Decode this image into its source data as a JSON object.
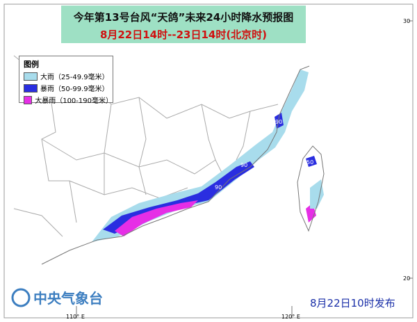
{
  "header": {
    "title": "今年第13号台风“天鸽”未来24小时降水预报图",
    "subtitle": "8月22日14时--23日14时(北京时)"
  },
  "legend": {
    "title": "图例",
    "items": [
      {
        "label": "大雨（25-49.9毫米）",
        "color": "#a8dcec"
      },
      {
        "label": "暴雨（50-99.9毫米）",
        "color": "#2a2ee0"
      },
      {
        "label": "大暴雨（100-190毫米）",
        "color": "#e62ee6"
      }
    ]
  },
  "axes": {
    "x_labels": [
      "110° E",
      "120° E"
    ],
    "y_labels": [
      "30",
      "20"
    ]
  },
  "contour_labels": [
    "90",
    "90",
    "90",
    "50"
  ],
  "footer": {
    "organization": "中央气象台",
    "issued": "8月22日10时发布"
  }
}
